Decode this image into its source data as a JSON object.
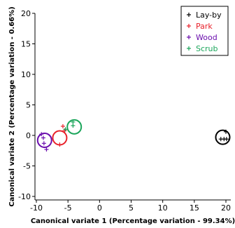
{
  "chart_data": {
    "type": "scatter",
    "xlabel": "Canonical variate 1 (Percentage variation - 99.34%)",
    "ylabel": "Canonical variate 2 (Percentage variation - 0.66%)",
    "xlim": [
      -10,
      20
    ],
    "ylim": [
      -10,
      20
    ],
    "xticks": [
      -10,
      -5,
      0,
      5,
      10,
      15,
      20
    ],
    "yticks": [
      -10,
      -5,
      0,
      5,
      10,
      15,
      20
    ],
    "grid": false,
    "legend_position": "top-right",
    "marker": "+",
    "series": [
      {
        "name": "Lay-by",
        "color": "#000000",
        "points": [
          [
            20.0,
            0.6
          ],
          [
            19.2,
            -0.6
          ],
          [
            19.7,
            -0.6
          ],
          [
            20.1,
            -0.6
          ]
        ],
        "circle_center": [
          19.5,
          -0.3
        ]
      },
      {
        "name": "Park",
        "color": "#e8202a",
        "points": [
          [
            -5.8,
            1.5
          ],
          [
            -6.3,
            -1.5
          ],
          [
            -5.5,
            0.8
          ]
        ],
        "circle_center": [
          -6.3,
          -0.4
        ]
      },
      {
        "name": "Wood",
        "color": "#6a0dad",
        "points": [
          [
            -9.2,
            0.2
          ],
          [
            -8.8,
            -1.3
          ],
          [
            -8.4,
            -2.3
          ],
          [
            -8.9,
            -0.4
          ]
        ],
        "circle_center": [
          -8.7,
          -0.8
        ]
      },
      {
        "name": "Scrub",
        "color": "#1aa55a",
        "points": [
          [
            -4.2,
            2.2
          ],
          [
            -4.2,
            1.6
          ],
          [
            -5.4,
            1.0
          ]
        ],
        "circle_center": [
          -4.0,
          1.4
        ]
      }
    ]
  }
}
